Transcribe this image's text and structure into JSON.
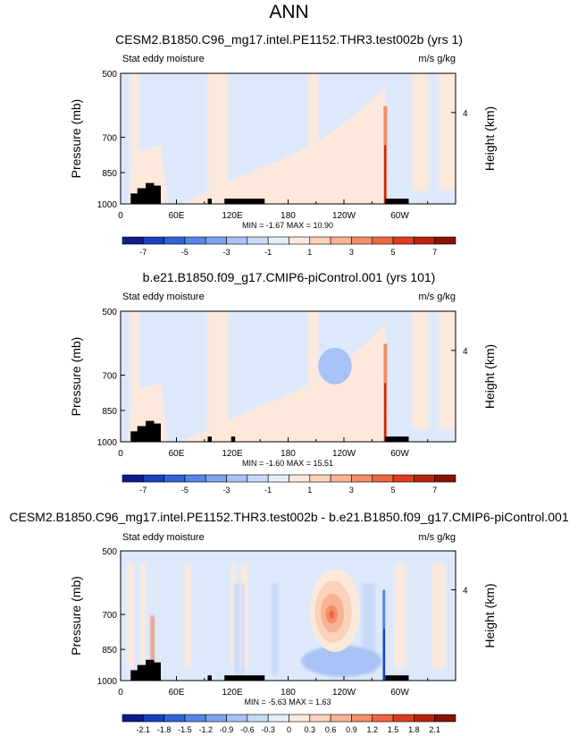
{
  "figure": {
    "title": "ANN"
  },
  "chart_data": [
    {
      "type": "heatmap",
      "title": "CESM2.B1850.C96_mg17.intel.PE1152.THR3.test002b (yrs 1)",
      "subtitle": "Stat eddy moisture",
      "units": "m/s g/kg",
      "ylabel": "Pressure (mb)",
      "ylabel_right": "Height (km)",
      "yticks": [
        "500",
        "700",
        "850",
        "1000"
      ],
      "yticks_right": [
        "4"
      ],
      "xticks": [
        "0",
        "60E",
        "120E",
        "180",
        "120W",
        "60W"
      ],
      "stats": "MIN =  -1.67   MAX =  10.90",
      "colorbar_labels": [
        "-7",
        "-5",
        "-3",
        "-1",
        "1",
        "3",
        "5",
        "7"
      ],
      "colorbar_colors": [
        "#0d1b8c",
        "#1a3fbf",
        "#2f63d8",
        "#5585e8",
        "#7ea3f0",
        "#a8c2f5",
        "#c9daf8",
        "#e6eefb",
        "#fde9dc",
        "#fbd2ba",
        "#f8b394",
        "#f48d69",
        "#ee6541",
        "#db3d1d",
        "#b8240e",
        "#8a0f05"
      ]
    },
    {
      "type": "heatmap",
      "title": "b.e21.B1850.f09_g17.CMIP6-piControl.001 (yrs 101)",
      "subtitle": "Stat eddy moisture",
      "units": "m/s g/kg",
      "ylabel": "Pressure (mb)",
      "ylabel_right": "Height (km)",
      "yticks": [
        "500",
        "700",
        "850",
        "1000"
      ],
      "yticks_right": [
        "4"
      ],
      "xticks": [
        "0",
        "60E",
        "120E",
        "180",
        "120W",
        "60W"
      ],
      "stats": "MIN =  -1.60   MAX =  15.51",
      "colorbar_labels": [
        "-7",
        "-5",
        "-3",
        "-1",
        "1",
        "3",
        "5",
        "7"
      ],
      "colorbar_colors": [
        "#0d1b8c",
        "#1a3fbf",
        "#2f63d8",
        "#5585e8",
        "#7ea3f0",
        "#a8c2f5",
        "#c9daf8",
        "#e6eefb",
        "#fde9dc",
        "#fbd2ba",
        "#f8b394",
        "#f48d69",
        "#ee6541",
        "#db3d1d",
        "#b8240e",
        "#8a0f05"
      ]
    },
    {
      "type": "heatmap",
      "title": "CESM2.B1850.C96_mg17.intel.PE1152.THR3.test002b - b.e21.B1850.f09_g17.CMIP6-piControl.001",
      "subtitle": "Stat eddy moisture",
      "units": "m/s g/kg",
      "ylabel": "Pressure (mb)",
      "ylabel_right": "Height (km)",
      "yticks": [
        "500",
        "700",
        "850",
        "1000"
      ],
      "yticks_right": [
        "4"
      ],
      "xticks": [
        "0",
        "60E",
        "120E",
        "180",
        "120W",
        "60W"
      ],
      "stats": "MIN =  -5.63   MAX =   1.63",
      "colorbar_labels": [
        "-2.1",
        "-1.8",
        "-1.5",
        "-1.2",
        "-0.9",
        "-0.6",
        "-0.3",
        "0",
        "0.3",
        "0.6",
        "0.9",
        "1.2",
        "1.5",
        "1.8",
        "2.1"
      ],
      "colorbar_colors": [
        "#0d1b8c",
        "#1a3fbf",
        "#2f63d8",
        "#5585e8",
        "#7ea3f0",
        "#a8c2f5",
        "#c9daf8",
        "#e6eefb",
        "#fde9dc",
        "#fbd2ba",
        "#f8b394",
        "#f48d69",
        "#ee6541",
        "#db3d1d",
        "#b8240e",
        "#8a0f05"
      ]
    }
  ]
}
